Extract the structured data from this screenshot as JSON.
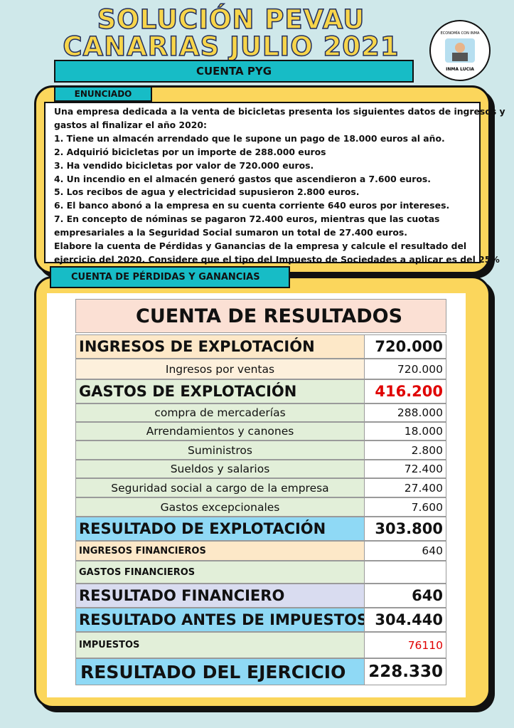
{
  "header": {
    "title_lines": [
      "SOLUCIÓN PEVAU",
      "CANARIAS JULIO 2021"
    ],
    "subtitle": "CUENTA PYG",
    "logo": {
      "top_text": "ECONOMÍA CON INMA",
      "name": "INMA LUCIA"
    }
  },
  "enunciado": {
    "label": "ENUNCIADO",
    "lines": [
      "Una empresa dedicada a la venta de bicicletas presenta los siguientes datos de ingresos y",
      "gastos al finalizar el año 2020:",
      "1. Tiene un almacén arrendado que le supone un pago de 18.000 euros al año.",
      "2. Adquirió bicicletas por un importe de 288.000 euros",
      "3. Ha vendido bicicletas por valor de 720.000 euros.",
      "4. Un incendio en el almacén generó gastos que ascendieron a 7.600 euros.",
      "5. Los recibos de agua y electricidad supusieron 2.800 euros.",
      "6. El banco abonó a la empresa en su cuenta corriente 640 euros por intereses.",
      "7. En concepto de nóminas se pagaron 72.400 euros, mientras que las cuotas",
      "empresariales a la Seguridad Social sumaron un total de 27.400 euros.",
      "Elabore la cuenta de Pérdidas y Ganancias de la empresa y calcule el resultado del",
      "ejercicio del 2020. Considere que el tipo del Impuesto de Sociedades a aplicar es del 25%"
    ]
  },
  "section": {
    "label": "CUENTA DE PÉRDIDAS Y GANANCIAS"
  },
  "table": {
    "title": "CUENTA DE RESULTADOS",
    "rows": [
      {
        "label": "INGRESOS DE EXPLOTACIÓN",
        "value": "720.000"
      },
      {
        "label": "Ingresos por ventas",
        "value": "720.000"
      },
      {
        "label": "GASTOS DE EXPLOTACIÓN",
        "value": "416.200"
      },
      {
        "label": "compra de mercaderías",
        "value": "288.000"
      },
      {
        "label": "Arrendamientos y canones",
        "value": "18.000"
      },
      {
        "label": "Suministros",
        "value": "2.800"
      },
      {
        "label": "Sueldos y salarios",
        "value": "72.400"
      },
      {
        "label": "Seguridad social a cargo de la empresa",
        "value": "27.400"
      },
      {
        "label": "Gastos excepcionales",
        "value": "7.600"
      },
      {
        "label": "RESULTADO DE EXPLOTACIÓN",
        "value": "303.800"
      },
      {
        "label": "INGRESOS FINANCIEROS",
        "value": "640"
      },
      {
        "label": "GASTOS FINANCIEROS"
      },
      {
        "label": "RESULTADO FINANCIERO",
        "value": "640"
      },
      {
        "label": "RESULTADO ANTES DE IMPUESTOS",
        "value": "304.440"
      },
      {
        "label": "IMPUESTOS",
        "value": "76110"
      },
      {
        "label": "RESULTADO DEL EJERCICIO",
        "value": "228.330"
      }
    ]
  }
}
